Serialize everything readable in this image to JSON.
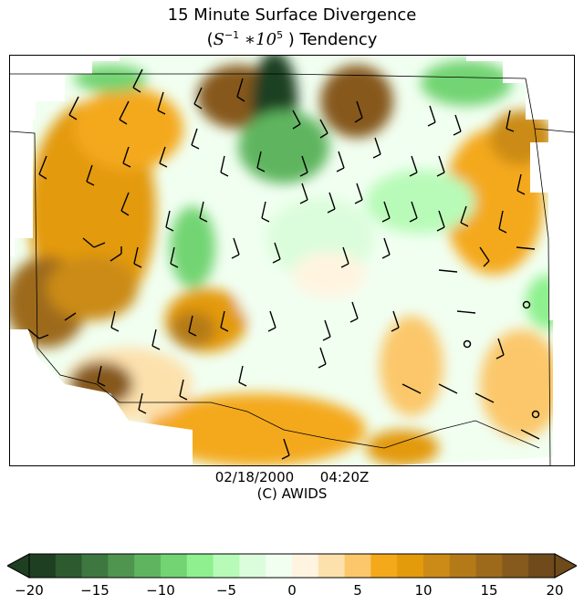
{
  "title": {
    "line1": "15 Minute Surface Divergence",
    "line2_prefix": "(",
    "line2_math_base": "S",
    "line2_math_exp1": "−1",
    "line2_math_mid": " ∗10",
    "line2_math_exp2": "5",
    "line2_suffix": " ) Tendency"
  },
  "stamp": {
    "date": "02/18/2000",
    "time": "04:20Z",
    "credit": "(C) AWIDS"
  },
  "colorbar": {
    "min": -20,
    "max": 20,
    "ticks": [
      "−20",
      "−15",
      "−10",
      "−5",
      "0",
      "5",
      "10",
      "15",
      "20"
    ],
    "negative_colors": [
      "#1f3f22",
      "#2e5a30",
      "#3e7840",
      "#4f9550",
      "#5fb55f",
      "#72d472",
      "#8ef08e",
      "#b8fbb8",
      "#dcfddc",
      "#f1fff1"
    ],
    "positive_colors": [
      "#fff4e0",
      "#fde1ad",
      "#fbc76a",
      "#f4a91a",
      "#e39a0b",
      "#cb8b16",
      "#b47a18",
      "#9d6a1b",
      "#86591c",
      "#6f4a1b"
    ]
  },
  "map_legend": {
    "wind_barb_icon": "wind-barb",
    "calm_circle_icon": "calm-wind-circle"
  }
}
